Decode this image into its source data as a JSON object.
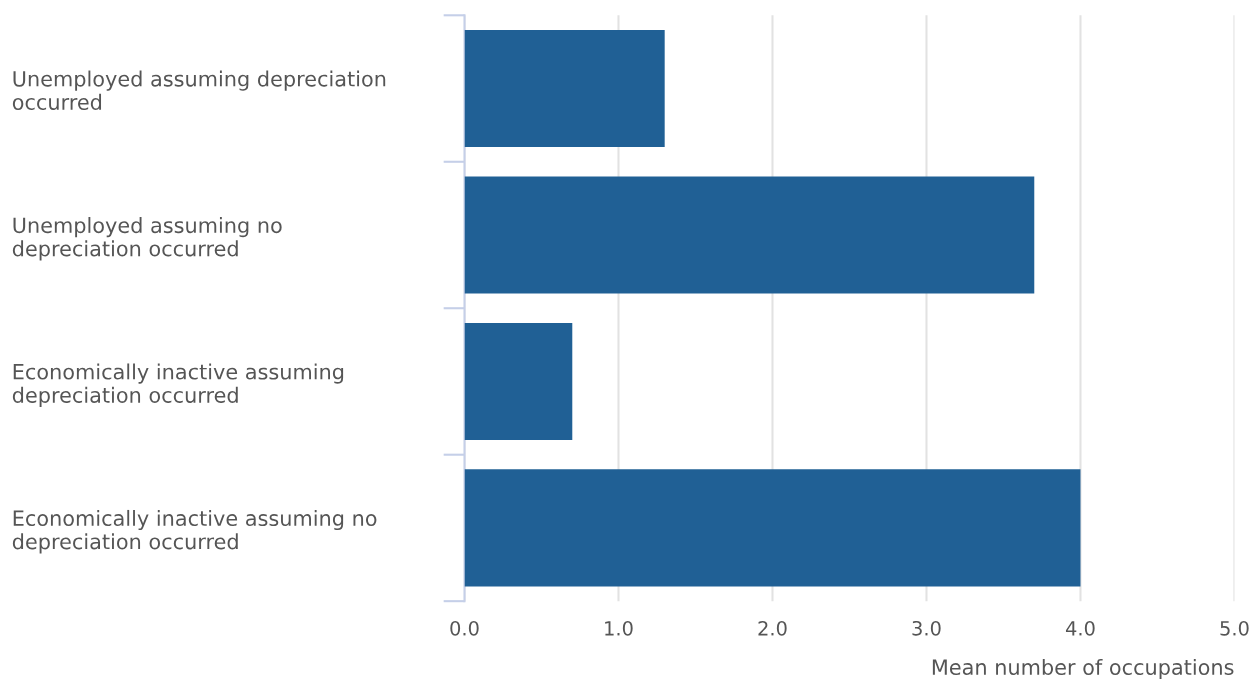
{
  "chart_data": {
    "type": "bar",
    "orientation": "horizontal",
    "xlabel": "Mean number of occupations",
    "categories": [
      "Unemployed assuming depreciation occurred",
      "Unemployed assuming no depreciation occurred",
      "Economically inactive assuming depreciation occurred",
      "Economically inactive assuming no depreciation occurred"
    ],
    "values": [
      1.3,
      3.7,
      0.7,
      4.0
    ],
    "color": "#206095",
    "xlim": [
      0,
      5
    ],
    "xticks": [
      {
        "value": 0,
        "label": "0.0"
      },
      {
        "value": 1,
        "label": "1.0"
      },
      {
        "value": 2,
        "label": "2.0"
      },
      {
        "value": 3,
        "label": "3.0"
      },
      {
        "value": 4,
        "label": "4.0"
      },
      {
        "value": 5,
        "label": "5.0"
      }
    ],
    "grid": "x",
    "legend": false
  }
}
